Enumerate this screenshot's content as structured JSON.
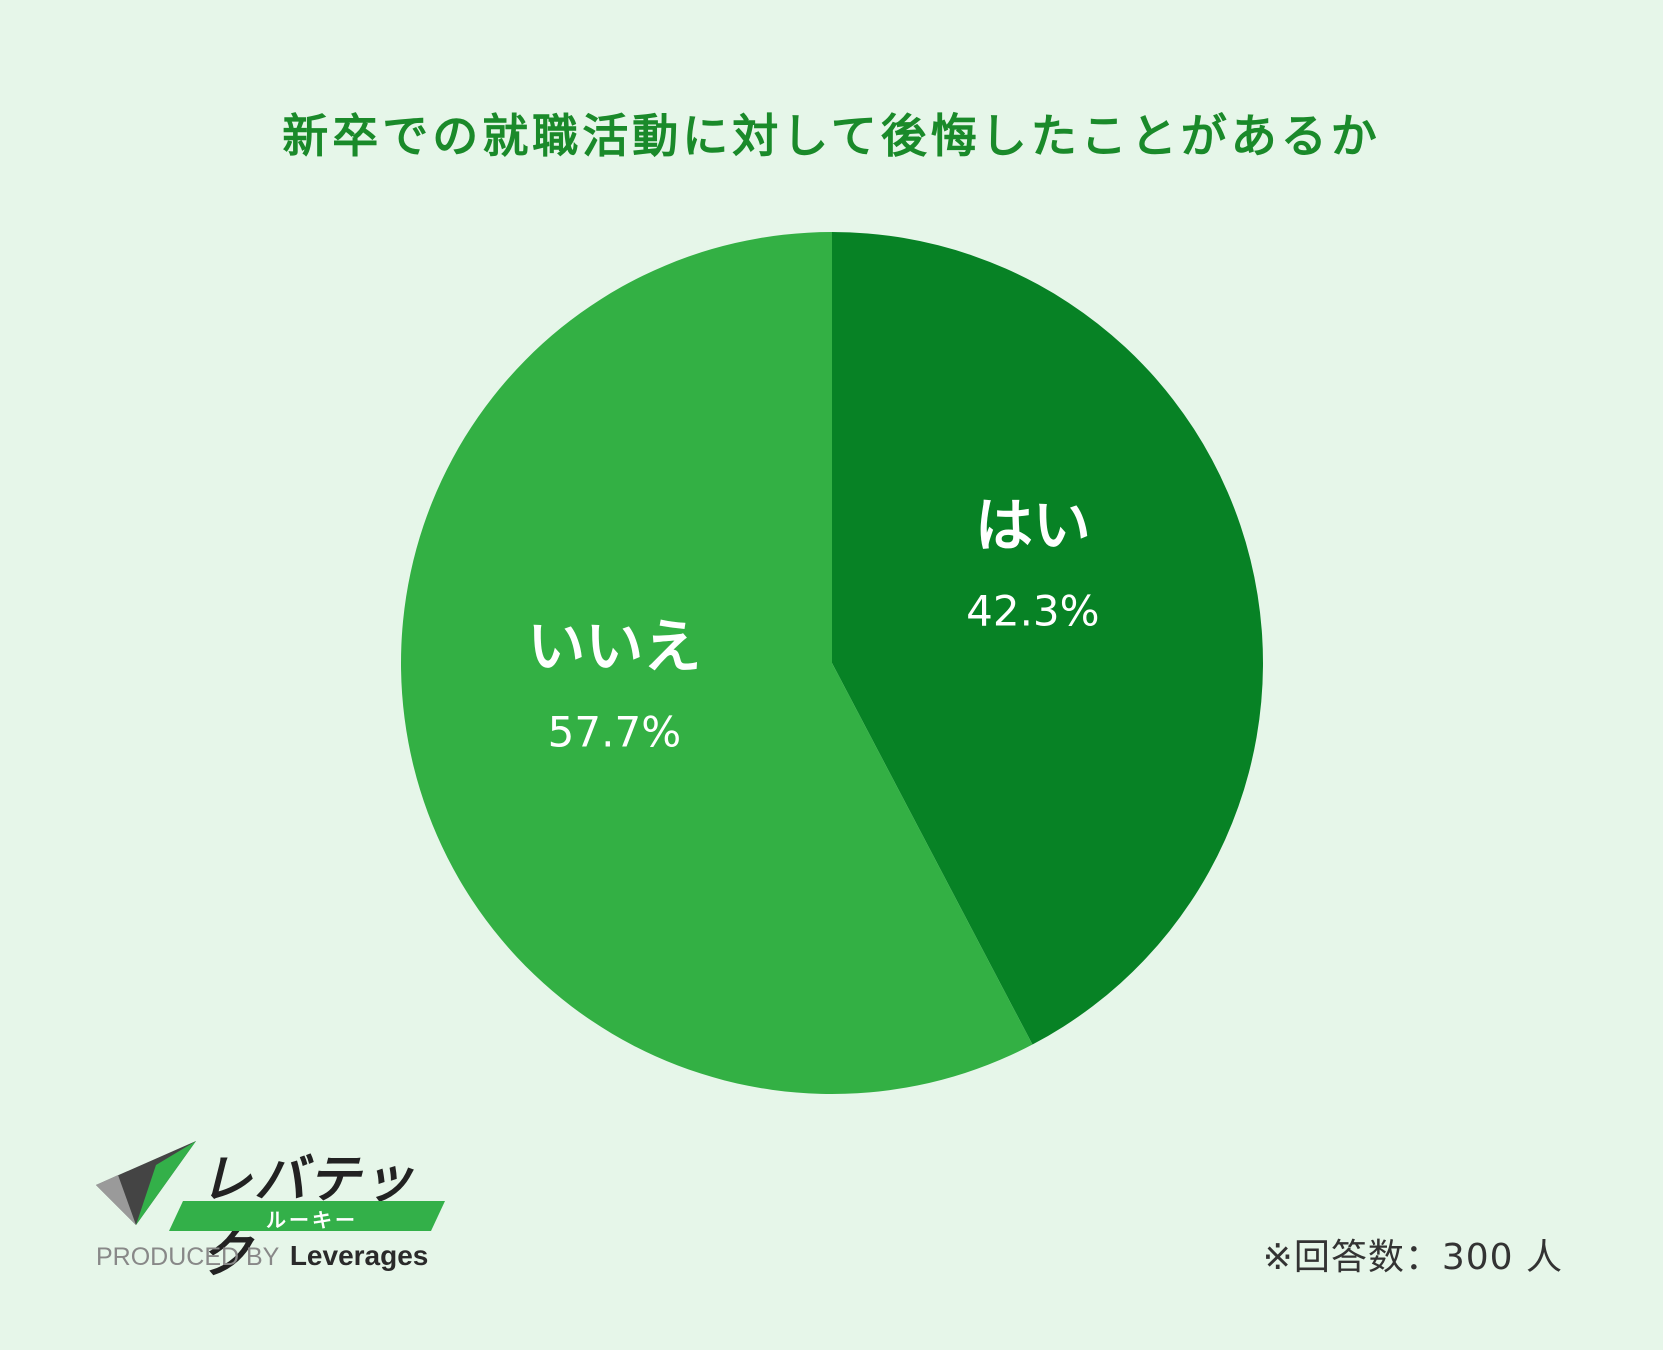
{
  "colors": {
    "background": "#e6f6e9",
    "title": "#1a8a2a",
    "yes_slice": "#078225",
    "no_slice": "#33b044",
    "label_text": "#ffffff"
  },
  "chart_data": {
    "type": "pie",
    "title": "新卒での就職活動に対して後悔したことがあるか",
    "start": "12 o'clock, clockwise",
    "slices": [
      {
        "label": "はい",
        "value": 42.3,
        "display": "42.3%",
        "color": "#078225"
      },
      {
        "label": "いいえ",
        "value": 57.7,
        "display": "57.7%",
        "color": "#33b044"
      }
    ]
  },
  "footer": {
    "note": "※回答数：300 人",
    "logo": {
      "brand": "レバテック",
      "sub": "ルーキー",
      "produced_by": "PRODUCED BY",
      "company": "Leverages"
    }
  }
}
